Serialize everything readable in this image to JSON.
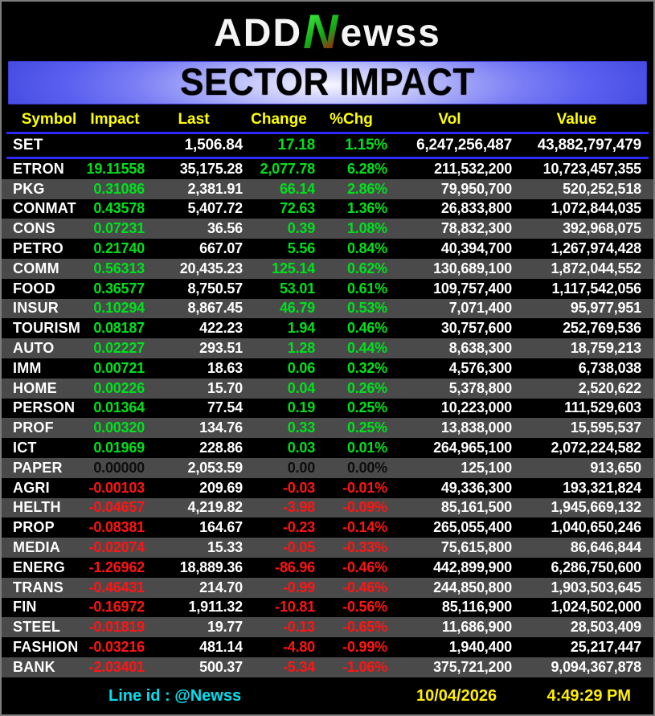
{
  "header": {
    "logo": {
      "add": "ADD",
      "n": "N",
      "ewss": "ewss"
    },
    "banner_title": "SECTOR IMPACT"
  },
  "table": {
    "columns": [
      "Symbol",
      "Impact",
      "Last",
      "Change",
      "%Chg",
      "Vol",
      "Value"
    ],
    "index_row": {
      "symbol": "SET",
      "impact": "",
      "last": "1,506.84",
      "change": "17.18",
      "pchg": "1.15%",
      "vol": "6,247,256,487",
      "value": "43,882,797,479",
      "direction": "up"
    },
    "rows": [
      {
        "symbol": "ETRON",
        "impact": "19.11558",
        "last": "35,175.28",
        "change": "2,077.78",
        "pchg": "6.28%",
        "vol": "211,532,200",
        "value": "10,723,457,355",
        "direction": "up"
      },
      {
        "symbol": "PKG",
        "impact": "0.31086",
        "last": "2,381.91",
        "change": "66.14",
        "pchg": "2.86%",
        "vol": "79,950,700",
        "value": "520,252,518",
        "direction": "up"
      },
      {
        "symbol": "CONMAT",
        "impact": "0.43578",
        "last": "5,407.72",
        "change": "72.63",
        "pchg": "1.36%",
        "vol": "26,833,800",
        "value": "1,072,844,035",
        "direction": "up"
      },
      {
        "symbol": "CONS",
        "impact": "0.07231",
        "last": "36.56",
        "change": "0.39",
        "pchg": "1.08%",
        "vol": "78,832,300",
        "value": "392,968,075",
        "direction": "up"
      },
      {
        "symbol": "PETRO",
        "impact": "0.21740",
        "last": "667.07",
        "change": "5.56",
        "pchg": "0.84%",
        "vol": "40,394,700",
        "value": "1,267,974,428",
        "direction": "up"
      },
      {
        "symbol": "COMM",
        "impact": "0.56313",
        "last": "20,435.23",
        "change": "125.14",
        "pchg": "0.62%",
        "vol": "130,689,100",
        "value": "1,872,044,552",
        "direction": "up"
      },
      {
        "symbol": "FOOD",
        "impact": "0.36577",
        "last": "8,750.57",
        "change": "53.01",
        "pchg": "0.61%",
        "vol": "109,757,400",
        "value": "1,117,542,056",
        "direction": "up"
      },
      {
        "symbol": "INSUR",
        "impact": "0.10294",
        "last": "8,867.45",
        "change": "46.79",
        "pchg": "0.53%",
        "vol": "7,071,400",
        "value": "95,977,951",
        "direction": "up"
      },
      {
        "symbol": "TOURISM",
        "impact": "0.08187",
        "last": "422.23",
        "change": "1.94",
        "pchg": "0.46%",
        "vol": "30,757,600",
        "value": "252,769,536",
        "direction": "up"
      },
      {
        "symbol": "AUTO",
        "impact": "0.02227",
        "last": "293.51",
        "change": "1.28",
        "pchg": "0.44%",
        "vol": "8,638,300",
        "value": "18,759,213",
        "direction": "up"
      },
      {
        "symbol": "IMM",
        "impact": "0.00721",
        "last": "18.63",
        "change": "0.06",
        "pchg": "0.32%",
        "vol": "4,576,300",
        "value": "6,738,038",
        "direction": "up"
      },
      {
        "symbol": "HOME",
        "impact": "0.00226",
        "last": "15.70",
        "change": "0.04",
        "pchg": "0.26%",
        "vol": "5,378,800",
        "value": "2,520,622",
        "direction": "up"
      },
      {
        "symbol": "PERSON",
        "impact": "0.01364",
        "last": "77.54",
        "change": "0.19",
        "pchg": "0.25%",
        "vol": "10,223,000",
        "value": "111,529,603",
        "direction": "up"
      },
      {
        "symbol": "PROF",
        "impact": "0.00320",
        "last": "134.76",
        "change": "0.33",
        "pchg": "0.25%",
        "vol": "13,838,000",
        "value": "15,595,537",
        "direction": "up"
      },
      {
        "symbol": "ICT",
        "impact": "0.01969",
        "last": "228.86",
        "change": "0.03",
        "pchg": "0.01%",
        "vol": "264,965,100",
        "value": "2,072,224,582",
        "direction": "up"
      },
      {
        "symbol": "PAPER",
        "impact": "0.00000",
        "last": "2,053.59",
        "change": "0.00",
        "pchg": "0.00%",
        "vol": "125,100",
        "value": "913,650",
        "direction": "flat"
      },
      {
        "symbol": "AGRI",
        "impact": "-0.00103",
        "last": "209.69",
        "change": "-0.03",
        "pchg": "-0.01%",
        "vol": "49,336,300",
        "value": "193,321,824",
        "direction": "down"
      },
      {
        "symbol": "HELTH",
        "impact": "-0.04657",
        "last": "4,219.82",
        "change": "-3.98",
        "pchg": "-0.09%",
        "vol": "85,161,500",
        "value": "1,945,669,132",
        "direction": "down"
      },
      {
        "symbol": "PROP",
        "impact": "-0.08381",
        "last": "164.67",
        "change": "-0.23",
        "pchg": "-0.14%",
        "vol": "265,055,400",
        "value": "1,040,650,246",
        "direction": "down"
      },
      {
        "symbol": "MEDIA",
        "impact": "-0.02074",
        "last": "15.33",
        "change": "-0.05",
        "pchg": "-0.33%",
        "vol": "75,615,800",
        "value": "86,646,844",
        "direction": "down"
      },
      {
        "symbol": "ENERG",
        "impact": "-1.26962",
        "last": "18,889.36",
        "change": "-86.96",
        "pchg": "-0.46%",
        "vol": "442,899,900",
        "value": "6,286,750,600",
        "direction": "down"
      },
      {
        "symbol": "TRANS",
        "impact": "-0.46431",
        "last": "214.70",
        "change": "-0.99",
        "pchg": "-0.46%",
        "vol": "244,850,800",
        "value": "1,903,503,645",
        "direction": "down"
      },
      {
        "symbol": "FIN",
        "impact": "-0.16972",
        "last": "1,911.32",
        "change": "-10.81",
        "pchg": "-0.56%",
        "vol": "85,116,900",
        "value": "1,024,502,000",
        "direction": "down"
      },
      {
        "symbol": "STEEL",
        "impact": "-0.01819",
        "last": "19.77",
        "change": "-0.13",
        "pchg": "-0.65%",
        "vol": "11,686,900",
        "value": "28,503,409",
        "direction": "down"
      },
      {
        "symbol": "FASHION",
        "impact": "-0.03216",
        "last": "481.14",
        "change": "-4.80",
        "pchg": "-0.99%",
        "vol": "1,940,400",
        "value": "25,217,447",
        "direction": "down"
      },
      {
        "symbol": "BANK",
        "impact": "-2.03401",
        "last": "500.37",
        "change": "-5.34",
        "pchg": "-1.06%",
        "vol": "375,721,200",
        "value": "9,094,367,878",
        "direction": "down"
      }
    ]
  },
  "footer": {
    "line_id": "Line id  : @Newss",
    "date": "10/04/2026",
    "time": "4:49:29 PM"
  },
  "colors": {
    "up": "#00e01e",
    "down": "#ff1414",
    "flat": "#0d0d0d",
    "header_text": "#ffff00",
    "rule": "#2b2bff",
    "row_alt": "#4a4a4a",
    "cyan": "#00e0f0",
    "yellow": "#ffee00"
  },
  "chart_data": {
    "type": "table",
    "title": "SECTOR IMPACT",
    "columns": [
      "Symbol",
      "Impact",
      "Last",
      "Change",
      "%Chg",
      "Vol",
      "Value"
    ],
    "index_row": [
      "SET",
      null,
      1506.84,
      17.18,
      1.15,
      6247256487,
      43882797479
    ],
    "rows": [
      [
        "ETRON",
        19.11558,
        35175.28,
        2077.78,
        6.28,
        211532200,
        10723457355
      ],
      [
        "PKG",
        0.31086,
        2381.91,
        66.14,
        2.86,
        79950700,
        520252518
      ],
      [
        "CONMAT",
        0.43578,
        5407.72,
        72.63,
        1.36,
        26833800,
        1072844035
      ],
      [
        "CONS",
        0.07231,
        36.56,
        0.39,
        1.08,
        78832300,
        392968075
      ],
      [
        "PETRO",
        0.2174,
        667.07,
        5.56,
        0.84,
        40394700,
        1267974428
      ],
      [
        "COMM",
        0.56313,
        20435.23,
        125.14,
        0.62,
        130689100,
        1872044552
      ],
      [
        "FOOD",
        0.36577,
        8750.57,
        53.01,
        0.61,
        109757400,
        1117542056
      ],
      [
        "INSUR",
        0.10294,
        8867.45,
        46.79,
        0.53,
        7071400,
        95977951
      ],
      [
        "TOURISM",
        0.08187,
        422.23,
        1.94,
        0.46,
        30757600,
        252769536
      ],
      [
        "AUTO",
        0.02227,
        293.51,
        1.28,
        0.44,
        8638300,
        18759213
      ],
      [
        "IMM",
        0.00721,
        18.63,
        0.06,
        0.32,
        4576300,
        6738038
      ],
      [
        "HOME",
        0.00226,
        15.7,
        0.04,
        0.26,
        5378800,
        2520622
      ],
      [
        "PERSON",
        0.01364,
        77.54,
        0.19,
        0.25,
        10223000,
        111529603
      ],
      [
        "PROF",
        0.0032,
        134.76,
        0.33,
        0.25,
        13838000,
        15595537
      ],
      [
        "ICT",
        0.01969,
        228.86,
        0.03,
        0.01,
        264965100,
        2072224582
      ],
      [
        "PAPER",
        0.0,
        2053.59,
        0.0,
        0.0,
        125100,
        913650
      ],
      [
        "AGRI",
        -0.00103,
        209.69,
        -0.03,
        -0.01,
        49336300,
        193321824
      ],
      [
        "HELTH",
        -0.04657,
        4219.82,
        -3.98,
        -0.09,
        85161500,
        1945669132
      ],
      [
        "PROP",
        -0.08381,
        164.67,
        -0.23,
        -0.14,
        265055400,
        1040650246
      ],
      [
        "MEDIA",
        -0.02074,
        15.33,
        -0.05,
        -0.33,
        75615800,
        86646844
      ],
      [
        "ENERG",
        -1.26962,
        18889.36,
        -86.96,
        -0.46,
        442899900,
        6286750600
      ],
      [
        "TRANS",
        -0.46431,
        214.7,
        -0.99,
        -0.46,
        244850800,
        1903503645
      ],
      [
        "FIN",
        -0.16972,
        1911.32,
        -10.81,
        -0.56,
        85116900,
        1024502000
      ],
      [
        "STEEL",
        -0.01819,
        19.77,
        -0.13,
        -0.65,
        11686900,
        28503409
      ],
      [
        "FASHION",
        -0.03216,
        481.14,
        -4.8,
        -0.99,
        1940400,
        25217447
      ],
      [
        "BANK",
        -2.03401,
        500.37,
        -5.34,
        -1.06,
        375721200,
        9094367878
      ]
    ]
  }
}
